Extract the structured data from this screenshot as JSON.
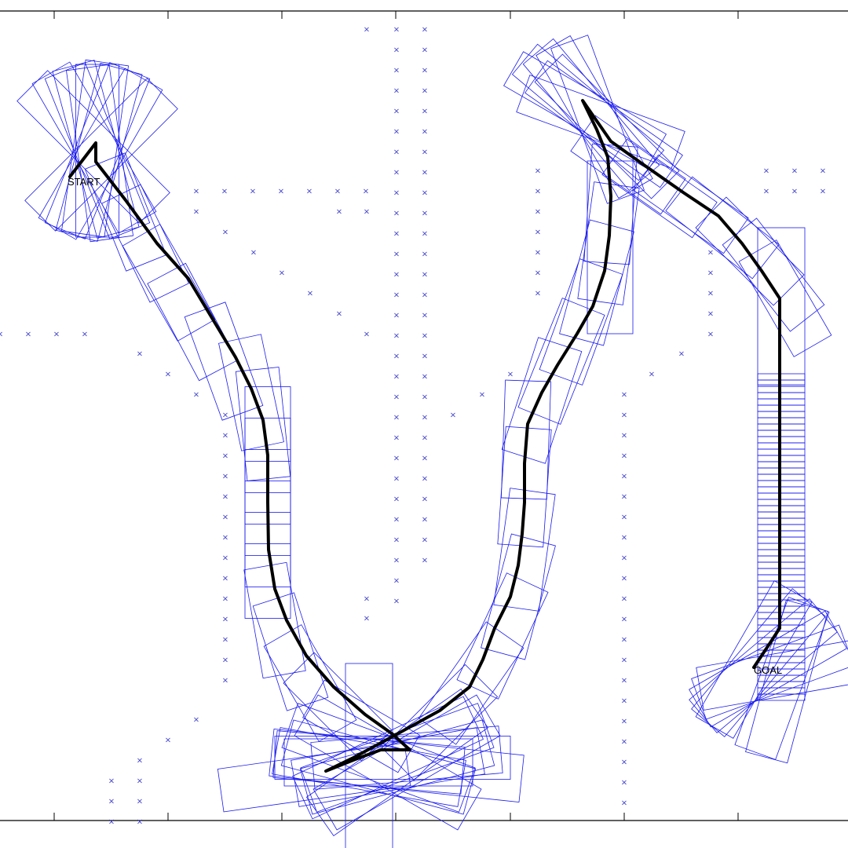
{
  "labels": {
    "start": "START",
    "goal": "GOAL"
  },
  "colors": {
    "footprint": "#1a1aee",
    "obstacle": "#3a3ac8",
    "path": "#000000",
    "frame": "#000000",
    "background": "#ffffff"
  },
  "icons": {
    "obstacle_marker": "x-mark-icon"
  }
}
